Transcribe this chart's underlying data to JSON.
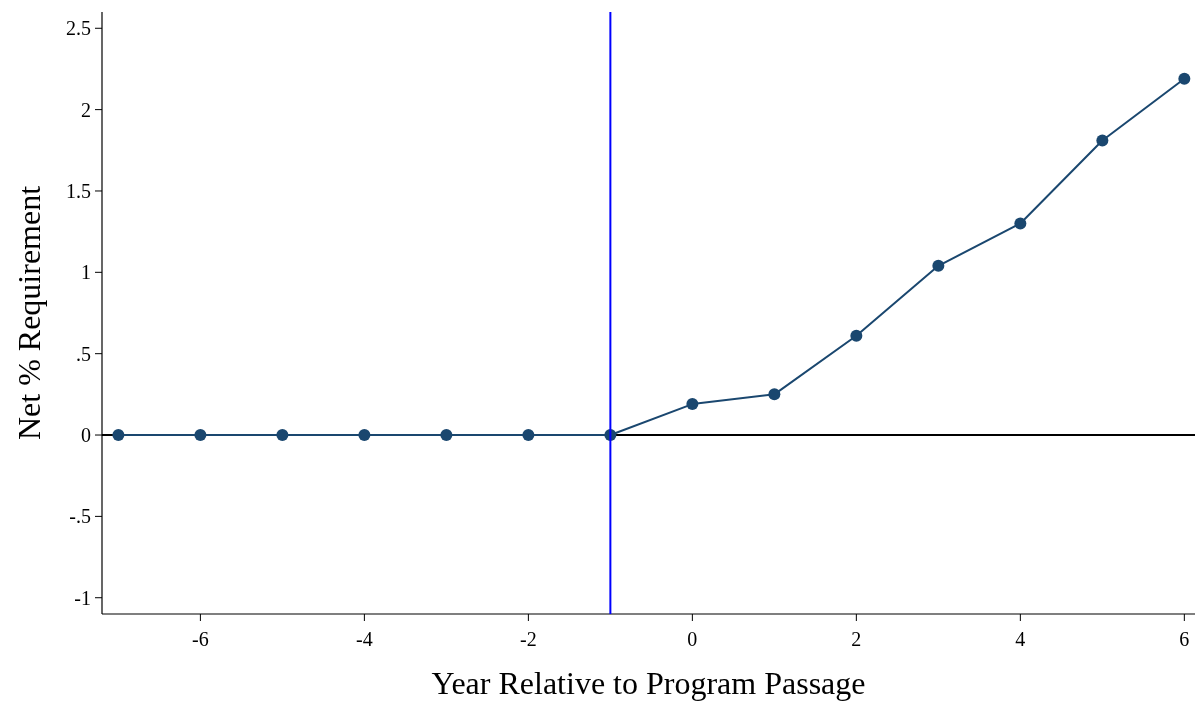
{
  "chart_data": {
    "type": "line",
    "xlabel": "Year Relative to Program Passage",
    "ylabel": "Net % Requirement",
    "x": [
      -7,
      -6,
      -5,
      -4,
      -3,
      -2,
      -1,
      0,
      1,
      2,
      3,
      4,
      5,
      6
    ],
    "series": [
      {
        "color": "#1a476f",
        "values": [
          0,
          0,
          0,
          0,
          0,
          0,
          0,
          0.19,
          0.25,
          0.61,
          1.04,
          1.3,
          1.81,
          2.19
        ]
      }
    ],
    "xlim": [
      -7.2,
      6.13
    ],
    "ylim": [
      -1.1,
      2.6
    ],
    "xticks": [
      -6,
      -4,
      -2,
      0,
      2,
      4,
      6
    ],
    "yticks": [
      -1,
      {
        "value": -0.5,
        "label": "-.5"
      },
      0,
      {
        "value": 0.5,
        "label": ".5"
      },
      1,
      1.5,
      2,
      2.5
    ],
    "ref_lines": [
      {
        "axis": "y",
        "value": 0,
        "color": "#000000"
      },
      {
        "axis": "x",
        "value": -1,
        "color": "#0000ff"
      }
    ],
    "marker": "circle",
    "line_style": "solid"
  }
}
